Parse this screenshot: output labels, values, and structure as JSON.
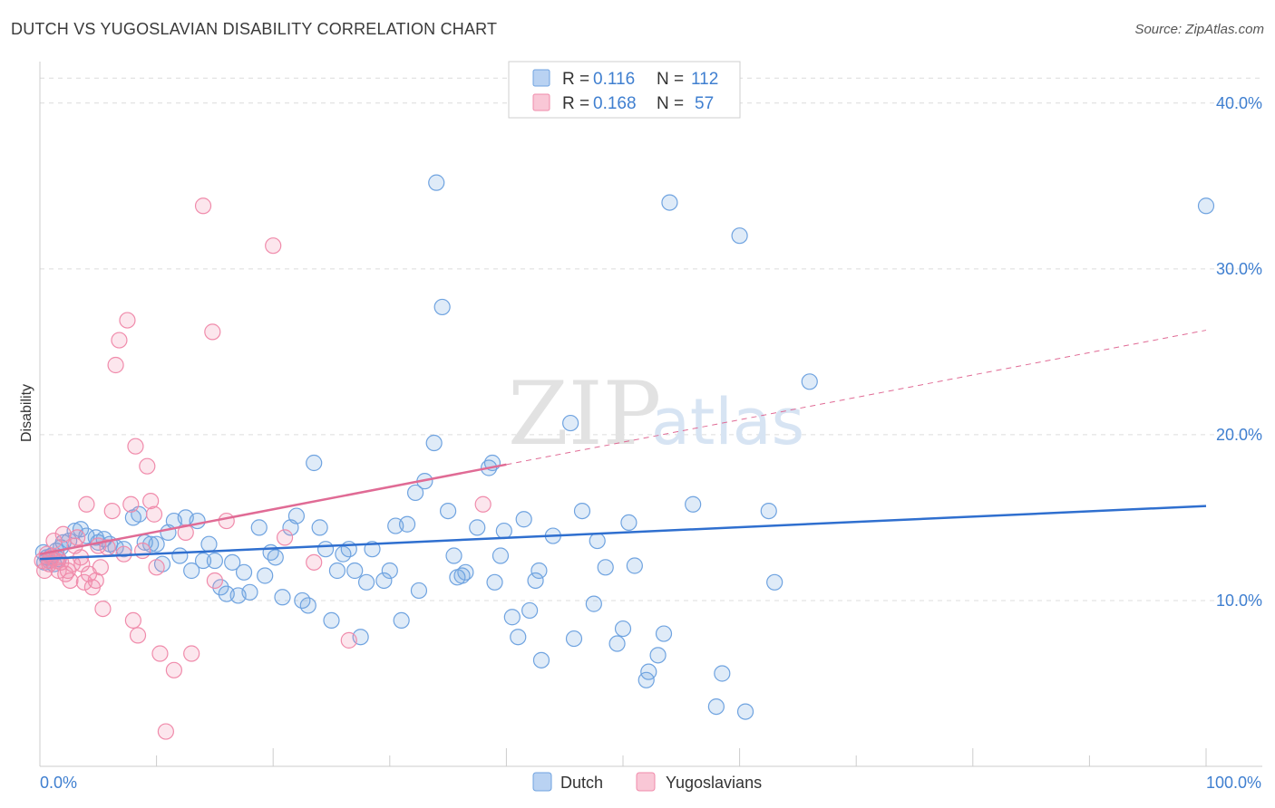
{
  "title": "DUTCH VS YUGOSLAVIAN DISABILITY CORRELATION CHART",
  "source": "Source: ZipAtlas.com",
  "watermark": {
    "part1": "ZIP",
    "part2": "atlas"
  },
  "legend": {
    "rows": [
      {
        "r_label": "R =",
        "r_value": "0.116",
        "n_label": "N =",
        "n_value": "112",
        "color": "#6fa3e0"
      },
      {
        "r_label": "R =",
        "r_value": "0.168",
        "n_label": "N =",
        "n_value": "57",
        "color": "#f08bab"
      }
    ]
  },
  "bottom_legend": [
    {
      "label": "Dutch",
      "color": "#6fa3e0"
    },
    {
      "label": "Yugoslavians",
      "color": "#f08bab"
    }
  ],
  "colors": {
    "blue": "#6fa3e0",
    "blue_line": "#2f6fcf",
    "pink": "#f08bab",
    "pink_line": "#e06b95",
    "tick": "#3f7fd0"
  },
  "chart_data": {
    "type": "scatter",
    "title": "DUTCH VS YUGOSLAVIAN DISABILITY CORRELATION CHART",
    "xlabel": "",
    "ylabel": "Disability",
    "xlim": [
      0,
      100
    ],
    "ylim": [
      0,
      42.5
    ],
    "x_tick_labels": [
      "0.0%",
      "100.0%"
    ],
    "y_ticks": [
      10,
      20,
      30,
      40
    ],
    "y_tick_labels": [
      "10.0%",
      "20.0%",
      "30.0%",
      "40.0%"
    ],
    "grid": true,
    "series": [
      {
        "name": "Dutch",
        "color": "#6fa3e0",
        "trend": {
          "x": [
            0,
            100
          ],
          "y": [
            12.5,
            15.7
          ]
        },
        "points": [
          [
            0.3,
            12.9
          ],
          [
            0.4,
            12.3
          ],
          [
            0.6,
            12.6
          ],
          [
            0.8,
            12.4
          ],
          [
            1.0,
            12.7
          ],
          [
            1.2,
            12.2
          ],
          [
            1.4,
            13.0
          ],
          [
            1.6,
            12.5
          ],
          [
            1.8,
            13.2
          ],
          [
            2.0,
            13.5
          ],
          [
            2.5,
            13.6
          ],
          [
            3.0,
            14.2
          ],
          [
            3.5,
            14.3
          ],
          [
            4.0,
            13.9
          ],
          [
            4.8,
            13.8
          ],
          [
            5.0,
            13.5
          ],
          [
            5.5,
            13.7
          ],
          [
            6.0,
            13.4
          ],
          [
            6.5,
            13.2
          ],
          [
            7.2,
            13.1
          ],
          [
            8.0,
            15.0
          ],
          [
            8.5,
            15.2
          ],
          [
            9.0,
            13.5
          ],
          [
            9.5,
            13.4
          ],
          [
            10.0,
            13.4
          ],
          [
            10.5,
            12.2
          ],
          [
            11.0,
            14.1
          ],
          [
            11.5,
            14.8
          ],
          [
            12.0,
            12.7
          ],
          [
            12.5,
            15.0
          ],
          [
            13.0,
            11.8
          ],
          [
            13.5,
            14.8
          ],
          [
            14.0,
            12.4
          ],
          [
            14.5,
            13.4
          ],
          [
            15.0,
            12.4
          ],
          [
            15.5,
            10.8
          ],
          [
            16.0,
            10.4
          ],
          [
            16.5,
            12.3
          ],
          [
            17.0,
            10.3
          ],
          [
            17.5,
            11.7
          ],
          [
            18.0,
            10.5
          ],
          [
            18.8,
            14.4
          ],
          [
            19.3,
            11.5
          ],
          [
            19.8,
            12.9
          ],
          [
            20.2,
            12.6
          ],
          [
            20.8,
            10.2
          ],
          [
            21.5,
            14.4
          ],
          [
            22.0,
            15.1
          ],
          [
            22.5,
            10.0
          ],
          [
            23.0,
            9.7
          ],
          [
            23.5,
            18.3
          ],
          [
            24.0,
            14.4
          ],
          [
            24.5,
            13.1
          ],
          [
            25.0,
            8.8
          ],
          [
            25.5,
            11.8
          ],
          [
            26.0,
            12.8
          ],
          [
            26.5,
            13.1
          ],
          [
            27.0,
            11.8
          ],
          [
            27.5,
            7.8
          ],
          [
            28.0,
            11.1
          ],
          [
            28.5,
            13.1
          ],
          [
            29.5,
            11.2
          ],
          [
            30.0,
            11.8
          ],
          [
            30.5,
            14.5
          ],
          [
            31.0,
            8.8
          ],
          [
            31.5,
            14.6
          ],
          [
            32.2,
            16.5
          ],
          [
            32.5,
            10.6
          ],
          [
            33.0,
            17.2
          ],
          [
            33.8,
            19.5
          ],
          [
            34.0,
            35.2
          ],
          [
            34.5,
            27.7
          ],
          [
            35.0,
            15.4
          ],
          [
            35.5,
            12.7
          ],
          [
            35.8,
            11.4
          ],
          [
            36.2,
            11.5
          ],
          [
            36.5,
            11.7
          ],
          [
            37.5,
            14.4
          ],
          [
            38.5,
            18.0
          ],
          [
            38.8,
            18.3
          ],
          [
            39.0,
            11.1
          ],
          [
            39.5,
            12.7
          ],
          [
            39.8,
            14.2
          ],
          [
            40.5,
            9.0
          ],
          [
            41.0,
            7.8
          ],
          [
            41.5,
            14.9
          ],
          [
            42.0,
            9.4
          ],
          [
            42.5,
            11.2
          ],
          [
            42.8,
            11.8
          ],
          [
            43.0,
            6.4
          ],
          [
            44.0,
            13.9
          ],
          [
            45.5,
            20.7
          ],
          [
            45.8,
            7.7
          ],
          [
            46.5,
            15.4
          ],
          [
            47.5,
            9.8
          ],
          [
            47.8,
            13.6
          ],
          [
            48.5,
            12.0
          ],
          [
            49.5,
            7.4
          ],
          [
            50.0,
            8.3
          ],
          [
            50.5,
            14.7
          ],
          [
            51.0,
            12.1
          ],
          [
            52.0,
            5.2
          ],
          [
            52.2,
            5.7
          ],
          [
            53.0,
            6.7
          ],
          [
            53.5,
            8.0
          ],
          [
            54.0,
            34.0
          ],
          [
            56.0,
            15.8
          ],
          [
            58.0,
            3.6
          ],
          [
            58.5,
            5.6
          ],
          [
            60.0,
            32.0
          ],
          [
            60.5,
            3.3
          ],
          [
            62.5,
            15.4
          ],
          [
            63.0,
            11.1
          ],
          [
            66.0,
            23.2
          ],
          [
            100.0,
            33.8
          ]
        ]
      },
      {
        "name": "Yugoslavians",
        "color": "#f08bab",
        "trend": {
          "x": [
            0,
            40
          ],
          "y": [
            12.8,
            18.2
          ]
        },
        "trend_dashed": {
          "x": [
            40,
            100
          ],
          "y": [
            18.2,
            26.3
          ]
        },
        "points": [
          [
            0.2,
            12.4
          ],
          [
            0.4,
            11.8
          ],
          [
            0.6,
            12.8
          ],
          [
            0.8,
            12.2
          ],
          [
            1.0,
            12.6
          ],
          [
            1.2,
            13.6
          ],
          [
            1.4,
            12.4
          ],
          [
            1.6,
            11.8
          ],
          [
            1.8,
            12.3
          ],
          [
            2.0,
            14.0
          ],
          [
            2.2,
            11.6
          ],
          [
            2.4,
            11.8
          ],
          [
            2.6,
            11.2
          ],
          [
            2.8,
            12.2
          ],
          [
            3.0,
            13.3
          ],
          [
            3.2,
            13.8
          ],
          [
            3.5,
            12.6
          ],
          [
            3.8,
            11.1
          ],
          [
            4.0,
            15.8
          ],
          [
            4.2,
            11.6
          ],
          [
            4.5,
            10.8
          ],
          [
            4.8,
            11.2
          ],
          [
            5.0,
            13.3
          ],
          [
            5.2,
            12.0
          ],
          [
            5.4,
            9.5
          ],
          [
            5.8,
            13.2
          ],
          [
            6.2,
            15.4
          ],
          [
            6.5,
            24.2
          ],
          [
            6.8,
            25.7
          ],
          [
            7.2,
            12.8
          ],
          [
            7.5,
            26.9
          ],
          [
            7.8,
            15.8
          ],
          [
            8.0,
            8.8
          ],
          [
            8.2,
            19.3
          ],
          [
            8.4,
            7.9
          ],
          [
            8.8,
            13.0
          ],
          [
            9.2,
            18.1
          ],
          [
            9.5,
            16.0
          ],
          [
            9.8,
            15.2
          ],
          [
            10.0,
            12.0
          ],
          [
            10.3,
            6.8
          ],
          [
            10.8,
            2.1
          ],
          [
            11.5,
            5.8
          ],
          [
            12.5,
            14.1
          ],
          [
            13.0,
            6.8
          ],
          [
            14.0,
            33.8
          ],
          [
            14.8,
            26.2
          ],
          [
            15.0,
            11.2
          ],
          [
            16.0,
            14.8
          ],
          [
            20.0,
            31.4
          ],
          [
            21.0,
            13.8
          ],
          [
            23.5,
            12.3
          ],
          [
            26.5,
            7.6
          ],
          [
            38.0,
            15.8
          ],
          [
            0.8,
            12.4
          ],
          [
            1.5,
            12.6
          ],
          [
            3.6,
            12.2
          ]
        ]
      }
    ]
  }
}
